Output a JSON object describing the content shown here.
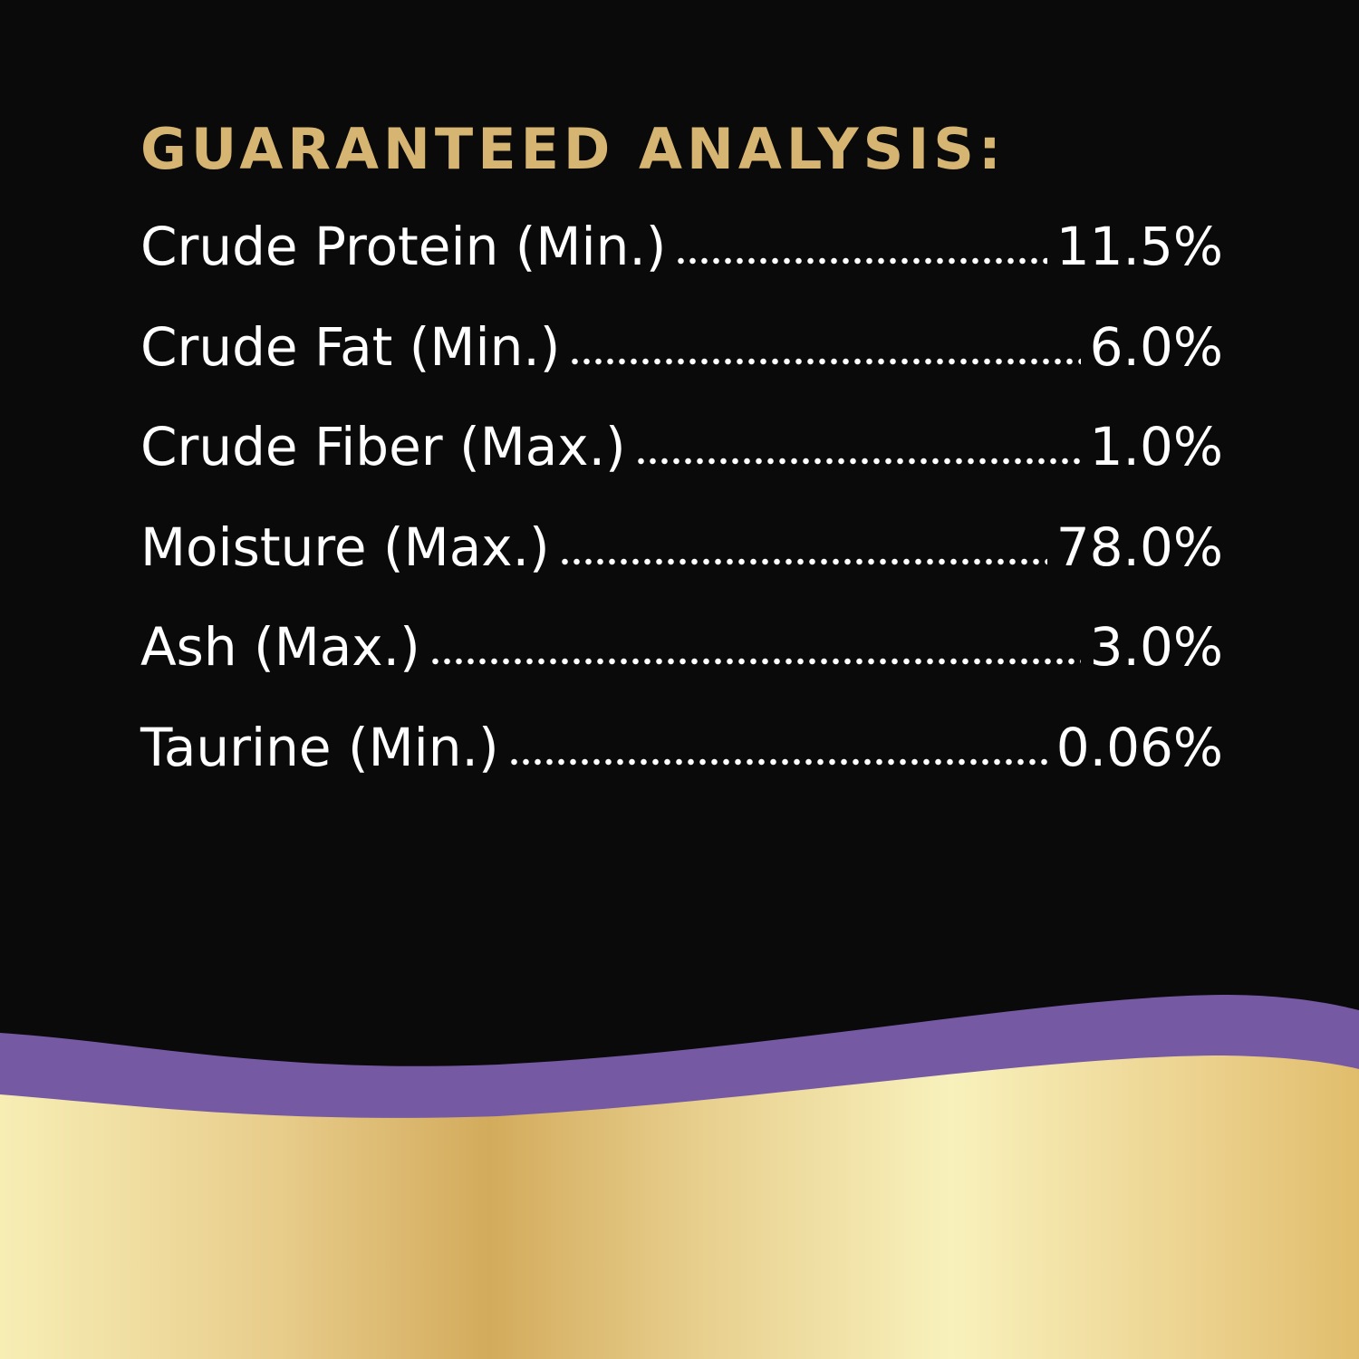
{
  "header": {
    "title": "GUARANTEED ANALYSIS:"
  },
  "table": {
    "rows": [
      [
        "Crude Protein (Min.)",
        "11.5%"
      ],
      [
        "Crude Fat (Min.)",
        "6.0%"
      ],
      [
        "Crude Fiber (Max.)",
        "1.0%"
      ],
      [
        "Moisture (Max.)",
        "78.0%"
      ],
      [
        "Ash (Max.)",
        "3.0%"
      ],
      [
        "Taurine (Min.)",
        "0.06%"
      ]
    ]
  }
}
